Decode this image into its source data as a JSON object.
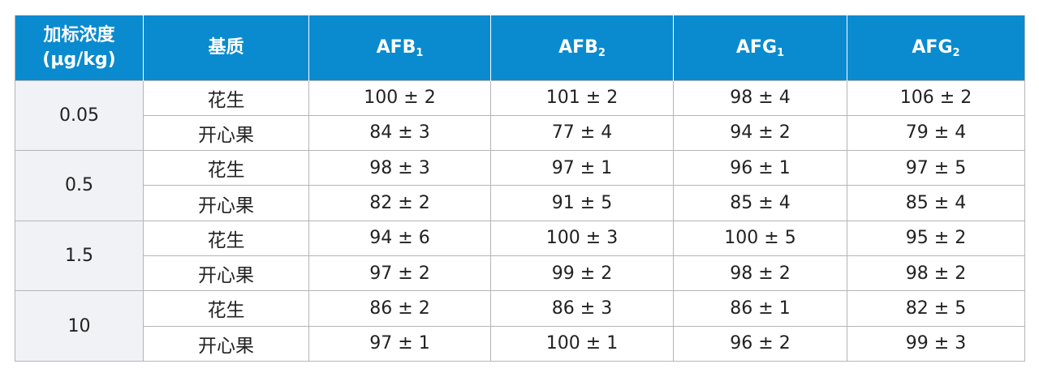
{
  "table": {
    "header": {
      "spike_level_line1": "加标浓度",
      "spike_level_line2": "(μg/kg)",
      "matrix": "基质",
      "afb1": "AFB",
      "afb1_sub": "1",
      "afb2": "AFB",
      "afb2_sub": "2",
      "afg1": "AFG",
      "afg1_sub": "1",
      "afg2": "AFG",
      "afg2_sub": "2"
    },
    "groups": [
      {
        "level": "0.05",
        "rows": [
          {
            "matrix": "花生",
            "afb1": "100 ± 2",
            "afb2": "101 ± 2",
            "afg1": "98 ± 4",
            "afg2": "106 ± 2"
          },
          {
            "matrix": "开心果",
            "afb1": "84 ± 3",
            "afb2": "77 ± 4",
            "afg1": "94 ± 2",
            "afg2": "79 ± 4"
          }
        ]
      },
      {
        "level": "0.5",
        "rows": [
          {
            "matrix": "花生",
            "afb1": "98 ± 3",
            "afb2": "97 ± 1",
            "afg1": "96 ± 1",
            "afg2": "97 ± 5"
          },
          {
            "matrix": "开心果",
            "afb1": "82 ± 2",
            "afb2": "91 ± 5",
            "afg1": "85 ± 4",
            "afg2": "85 ± 4"
          }
        ]
      },
      {
        "level": "1.5",
        "rows": [
          {
            "matrix": "花生",
            "afb1": "94 ± 6",
            "afb2": "100 ± 3",
            "afg1": "100 ± 5",
            "afg2": "95 ± 2"
          },
          {
            "matrix": "开心果",
            "afb1": "97 ± 2",
            "afb2": "99 ± 2",
            "afg1": "98 ± 2",
            "afg2": "98 ± 2"
          }
        ]
      },
      {
        "level": "10",
        "rows": [
          {
            "matrix": "花生",
            "afb1": "86 ± 2",
            "afb2": "86 ± 3",
            "afg1": "86 ± 1",
            "afg2": "82 ± 5"
          },
          {
            "matrix": "开心果",
            "afb1": "97 ± 1",
            "afb2": "100 ± 1",
            "afg1": "96 ± 2",
            "afg2": "99 ± 3"
          }
        ]
      }
    ]
  },
  "colors": {
    "header_background": "#0a8bd0",
    "header_text": "#ffffff",
    "level_cell_background": "#f1f2f5",
    "grid_lines": "#b5b5b5",
    "body_text": "#222222"
  }
}
